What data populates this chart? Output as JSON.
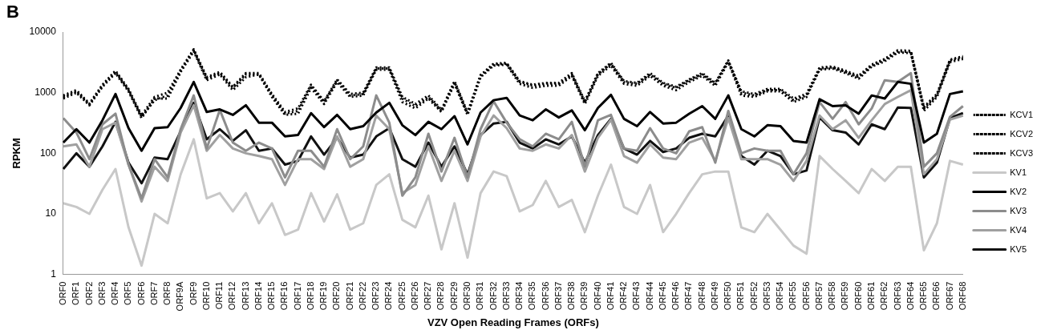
{
  "chart_data": {
    "type": "line",
    "title": "B",
    "xlabel": "VZV Open Reading Frames (ORFs)",
    "ylabel": "RPKM",
    "log": "y",
    "ylim": [
      1,
      10000
    ],
    "yticks": [
      1,
      10,
      100,
      1000,
      10000
    ],
    "grid": false,
    "legend": "right",
    "marker": "none",
    "categories": [
      "ORF0",
      "ORF1",
      "ORF2",
      "ORF3",
      "ORF4",
      "ORF5",
      "ORF6",
      "ORF7",
      "ORF8",
      "ORF9A",
      "ORF9",
      "ORF10",
      "ORF11",
      "ORF12",
      "ORF13",
      "ORF14",
      "ORF15",
      "ORF16",
      "ORF17",
      "ORF18",
      "ORF19",
      "ORF20",
      "ORF21",
      "ORF22",
      "ORF23",
      "ORF24",
      "ORF25",
      "ORF26",
      "ORF27",
      "ORF28",
      "ORF29",
      "ORF30",
      "ORF31",
      "ORF32",
      "ORF33",
      "ORF34",
      "ORF35",
      "ORF36",
      "ORF37",
      "ORF38",
      "ORF39",
      "ORF40",
      "ORF41",
      "ORF42",
      "ORF43",
      "ORF44",
      "ORF45",
      "ORF46",
      "ORF47",
      "ORF48",
      "ORF49",
      "ORF50",
      "ORF51",
      "ORF52",
      "ORF53",
      "ORF54",
      "ORF55",
      "ORF56",
      "ORF57",
      "ORF58",
      "ORF59",
      "ORF60",
      "ORF61",
      "ORF62",
      "ORF63",
      "ORF64",
      "ORF65",
      "ORF66",
      "ORF67",
      "ORF68"
    ],
    "series": [
      {
        "name": "KCV1",
        "color": "#000000",
        "line_style": "dotted",
        "values": [
          850,
          1050,
          640,
          1300,
          2200,
          1100,
          400,
          750,
          900,
          2300,
          5000,
          1700,
          2100,
          1200,
          2000,
          2000,
          900,
          450,
          500,
          1300,
          700,
          1600,
          900,
          950,
          2500,
          2500,
          800,
          600,
          850,
          500,
          1500,
          450,
          1900,
          2900,
          3000,
          1500,
          1300,
          1400,
          1400,
          2000,
          700,
          2000,
          3000,
          1500,
          1400,
          2000,
          1400,
          1200,
          1600,
          2000,
          1400,
          3300,
          1000,
          900,
          1100,
          1100,
          750,
          900,
          2500,
          2600,
          2200,
          1800,
          2800,
          3500,
          4800,
          4700,
          550,
          900,
          3400,
          3800
        ]
      },
      {
        "name": "KCV2",
        "color": "#000000",
        "line_style": "dotted",
        "values": [
          800,
          1000,
          620,
          1250,
          2100,
          1050,
          380,
          800,
          800,
          2200,
          4800,
          1600,
          2000,
          1100,
          1800,
          2000,
          850,
          430,
          450,
          1200,
          650,
          1500,
          850,
          900,
          2400,
          2400,
          700,
          550,
          800,
          480,
          1400,
          430,
          1800,
          2800,
          2900,
          1400,
          1200,
          1300,
          1300,
          1900,
          650,
          1900,
          2800,
          1400,
          1300,
          1900,
          1300,
          1100,
          1500,
          1900,
          1300,
          3200,
          900,
          850,
          1050,
          1050,
          700,
          850,
          2400,
          2500,
          2100,
          1700,
          2700,
          3300,
          4600,
          4500,
          500,
          850,
          3200,
          3600
        ]
      },
      {
        "name": "KCV3",
        "color": "#000000",
        "line_style": "dotted",
        "values": [
          900,
          1100,
          660,
          1350,
          2300,
          1150,
          420,
          850,
          1000,
          2400,
          5200,
          1800,
          2200,
          1250,
          2100,
          2100,
          950,
          480,
          550,
          1350,
          720,
          1650,
          950,
          1000,
          2600,
          2600,
          850,
          650,
          900,
          520,
          1550,
          470,
          1950,
          3000,
          3100,
          1550,
          1350,
          1450,
          1450,
          2100,
          720,
          2100,
          3100,
          1550,
          1450,
          2100,
          1450,
          1250,
          1650,
          2100,
          1450,
          3400,
          1050,
          950,
          1150,
          1150,
          800,
          950,
          2600,
          2700,
          2300,
          1900,
          2900,
          3600,
          5000,
          4900,
          580,
          950,
          3500,
          4000
        ]
      },
      {
        "name": "KV1",
        "color": "#c8c8c8",
        "values": [
          15,
          13,
          10,
          25,
          55,
          6,
          1.4,
          10,
          7,
          45,
          170,
          18,
          22,
          11,
          22,
          7,
          15,
          4.5,
          5.5,
          22,
          7.5,
          21,
          5.5,
          7,
          30,
          45,
          8,
          6,
          20,
          2.6,
          15,
          1.9,
          22,
          50,
          42,
          11,
          14,
          35,
          13,
          17,
          5,
          20,
          65,
          13,
          10,
          30,
          5,
          10,
          22,
          45,
          50,
          50,
          6,
          5,
          10,
          5.5,
          3,
          2.2,
          90,
          55,
          35,
          22,
          55,
          35,
          60,
          60,
          2.5,
          7,
          75,
          65
        ]
      },
      {
        "name": "KV2",
        "color": "#000000",
        "values": [
          150,
          250,
          150,
          350,
          950,
          260,
          110,
          260,
          270,
          560,
          1500,
          480,
          530,
          430,
          620,
          320,
          320,
          190,
          200,
          460,
          270,
          430,
          250,
          280,
          470,
          680,
          290,
          200,
          330,
          250,
          410,
          140,
          470,
          750,
          820,
          420,
          350,
          530,
          390,
          510,
          240,
          560,
          920,
          370,
          280,
          480,
          310,
          320,
          450,
          600,
          370,
          900,
          250,
          190,
          290,
          280,
          160,
          150,
          780,
          600,
          620,
          450,
          900,
          800,
          1500,
          1400,
          150,
          210,
          950,
          1050
        ]
      },
      {
        "name": "KV3",
        "color": "#8c8c8c",
        "values": [
          380,
          220,
          80,
          300,
          450,
          65,
          18,
          80,
          40,
          250,
          900,
          120,
          520,
          150,
          110,
          150,
          120,
          40,
          110,
          110,
          60,
          250,
          80,
          130,
          900,
          320,
          20,
          40,
          210,
          50,
          180,
          40,
          250,
          720,
          320,
          170,
          130,
          210,
          170,
          330,
          60,
          350,
          430,
          120,
          110,
          260,
          120,
          100,
          230,
          270,
          70,
          500,
          100,
          120,
          110,
          110,
          45,
          100,
          700,
          370,
          700,
          300,
          550,
          1600,
          1500,
          2100,
          60,
          100,
          400,
          600
        ]
      },
      {
        "name": "KV4",
        "color": "#a0a0a0",
        "values": [
          130,
          140,
          60,
          250,
          320,
          65,
          16,
          60,
          35,
          220,
          620,
          110,
          200,
          120,
          100,
          90,
          80,
          30,
          80,
          80,
          55,
          190,
          60,
          80,
          420,
          250,
          22,
          30,
          130,
          35,
          110,
          35,
          190,
          420,
          260,
          120,
          110,
          140,
          120,
          200,
          50,
          180,
          360,
          90,
          70,
          140,
          85,
          80,
          150,
          180,
          75,
          380,
          80,
          80,
          80,
          65,
          35,
          75,
          420,
          250,
          350,
          180,
          350,
          650,
          850,
          1100,
          45,
          80,
          360,
          420
        ]
      },
      {
        "name": "KV5",
        "color": "#111111",
        "values": [
          55,
          100,
          60,
          130,
          330,
          70,
          32,
          85,
          80,
          230,
          680,
          170,
          250,
          160,
          240,
          110,
          120,
          65,
          75,
          190,
          95,
          180,
          85,
          95,
          190,
          260,
          80,
          60,
          150,
          60,
          130,
          45,
          200,
          310,
          330,
          150,
          120,
          170,
          140,
          190,
          70,
          200,
          370,
          120,
          95,
          160,
          105,
          120,
          180,
          210,
          190,
          420,
          90,
          65,
          110,
          90,
          45,
          52,
          390,
          240,
          220,
          140,
          300,
          250,
          570,
          560,
          40,
          70,
          380,
          460
        ]
      }
    ]
  }
}
